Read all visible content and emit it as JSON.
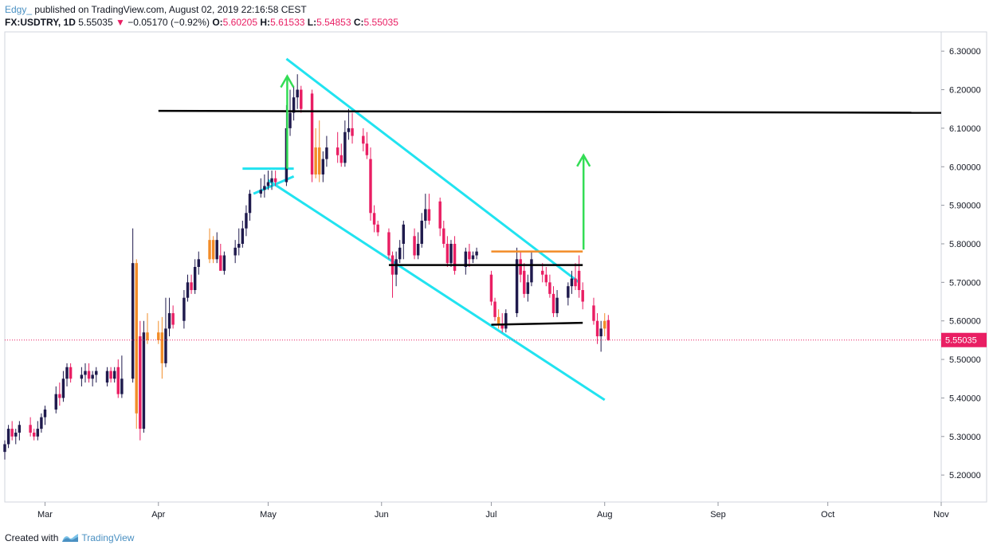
{
  "header": {
    "username": "Edgy_",
    "published_text": "published on TradingView.com, August 02, 2019 22:16:58 CEST",
    "symbol": "FX:USDTRY, 1D",
    "last": "5.55035",
    "change": "−0.05170 (−0.92%)",
    "o_label": "O:",
    "o_value": "5.60205",
    "h_label": "H:",
    "h_value": "5.61533",
    "l_label": "L:",
    "l_value": "5.54853",
    "c_label": "C:",
    "c_value": "5.55035"
  },
  "footer": {
    "created_with": "Created with",
    "brand": "TradingView"
  },
  "colors": {
    "up": "#1f1a4d",
    "down": "#e91e63",
    "highlight": "#f28c28",
    "channel": "#21e3f0",
    "arrow": "#33dd55",
    "level": "#000000",
    "price_tag": "#e91e63"
  },
  "chart_data": {
    "type": "candlestick",
    "symbol": "FX:USDTRY",
    "interval": "1D",
    "y_ticks": [
      5.2,
      5.3,
      5.4,
      5.5,
      5.6,
      5.7,
      5.8,
      5.9,
      6.0,
      6.1,
      6.2,
      6.3
    ],
    "y_tick_labels": [
      "5.20000",
      "5.30000",
      "5.40000",
      "5.50000",
      "5.60000",
      "5.70000",
      "5.80000",
      "5.90000",
      "6.00000",
      "6.10000",
      "6.20000",
      "6.30000"
    ],
    "ylim": [
      5.13,
      6.35
    ],
    "x_ticks": [
      {
        "label": "Mar",
        "date": "2019-03-01"
      },
      {
        "label": "Apr",
        "date": "2019-04-01"
      },
      {
        "label": "May",
        "date": "2019-05-01"
      },
      {
        "label": "Jun",
        "date": "2019-06-01"
      },
      {
        "label": "Jul",
        "date": "2019-07-01"
      },
      {
        "label": "Aug",
        "date": "2019-08-01"
      },
      {
        "label": "Sep",
        "date": "2019-09-01"
      },
      {
        "label": "Oct",
        "date": "2019-10-01"
      },
      {
        "label": "Nov",
        "date": "2019-11-01"
      }
    ],
    "xlim": [
      "2019-02-18",
      "2019-11-01"
    ],
    "last_price": 5.55035,
    "last_price_label": "5.55035",
    "candles": [
      {
        "d": "2019-02-18",
        "o": 5.26,
        "h": 5.29,
        "l": 5.24,
        "c": 5.28
      },
      {
        "d": "2019-02-19",
        "o": 5.28,
        "h": 5.33,
        "l": 5.27,
        "c": 5.32
      },
      {
        "d": "2019-02-20",
        "o": 5.32,
        "h": 5.34,
        "l": 5.29,
        "c": 5.3
      },
      {
        "d": "2019-02-21",
        "o": 5.3,
        "h": 5.32,
        "l": 5.28,
        "c": 5.31
      },
      {
        "d": "2019-02-22",
        "o": 5.31,
        "h": 5.34,
        "l": 5.29,
        "c": 5.33
      },
      {
        "d": "2019-02-25",
        "o": 5.33,
        "h": 5.35,
        "l": 5.3,
        "c": 5.31
      },
      {
        "d": "2019-02-26",
        "o": 5.31,
        "h": 5.32,
        "l": 5.29,
        "c": 5.3
      },
      {
        "d": "2019-02-27",
        "o": 5.3,
        "h": 5.34,
        "l": 5.29,
        "c": 5.32
      },
      {
        "d": "2019-02-28",
        "o": 5.32,
        "h": 5.36,
        "l": 5.31,
        "c": 5.35
      },
      {
        "d": "2019-03-01",
        "o": 5.35,
        "h": 5.38,
        "l": 5.33,
        "c": 5.37
      },
      {
        "d": "2019-03-04",
        "o": 5.37,
        "h": 5.43,
        "l": 5.36,
        "c": 5.41
      },
      {
        "d": "2019-03-05",
        "o": 5.41,
        "h": 5.44,
        "l": 5.38,
        "c": 5.4
      },
      {
        "d": "2019-03-06",
        "o": 5.4,
        "h": 5.47,
        "l": 5.39,
        "c": 5.45
      },
      {
        "d": "2019-03-07",
        "o": 5.45,
        "h": 5.49,
        "l": 5.43,
        "c": 5.48
      },
      {
        "d": "2019-03-08",
        "o": 5.48,
        "h": 5.49,
        "l": 5.44,
        "c": 5.45
      },
      {
        "d": "2019-03-11",
        "o": 5.45,
        "h": 5.48,
        "l": 5.43,
        "c": 5.46
      },
      {
        "d": "2019-03-12",
        "o": 5.46,
        "h": 5.49,
        "l": 5.44,
        "c": 5.47
      },
      {
        "d": "2019-03-13",
        "o": 5.47,
        "h": 5.49,
        "l": 5.44,
        "c": 5.45
      },
      {
        "d": "2019-03-14",
        "o": 5.45,
        "h": 5.47,
        "l": 5.43,
        "c": 5.46
      },
      {
        "d": "2019-03-15",
        "o": 5.46,
        "h": 5.48,
        "l": 5.44,
        "c": 5.47
      },
      {
        "d": "2019-03-18",
        "o": 5.44,
        "h": 5.48,
        "l": 5.43,
        "c": 5.47
      },
      {
        "d": "2019-03-19",
        "o": 5.47,
        "h": 5.48,
        "l": 5.44,
        "c": 5.45
      },
      {
        "d": "2019-03-20",
        "o": 5.45,
        "h": 5.48,
        "l": 5.44,
        "c": 5.47
      },
      {
        "d": "2019-03-21",
        "o": 5.48,
        "h": 5.5,
        "l": 5.4,
        "c": 5.41
      },
      {
        "d": "2019-03-22",
        "o": 5.41,
        "h": 5.51,
        "l": 5.4,
        "c": 5.45
      },
      {
        "d": "2019-03-25",
        "o": 5.45,
        "h": 5.84,
        "l": 5.44,
        "c": 5.75
      },
      {
        "d": "2019-03-26",
        "o": 5.75,
        "h": 5.76,
        "l": 5.32,
        "c": 5.36
      },
      {
        "d": "2019-03-27",
        "o": 5.56,
        "h": 5.6,
        "l": 5.29,
        "c": 5.32
      },
      {
        "d": "2019-03-28",
        "o": 5.32,
        "h": 5.6,
        "l": 5.31,
        "c": 5.57
      },
      {
        "d": "2019-03-29",
        "o": 5.57,
        "h": 5.62,
        "l": 5.54,
        "c": 5.55
      },
      {
        "d": "2019-04-01",
        "o": 5.55,
        "h": 5.6,
        "l": 5.54,
        "c": 5.57
      },
      {
        "d": "2019-04-02",
        "o": 5.57,
        "h": 5.61,
        "l": 5.45,
        "c": 5.49
      },
      {
        "d": "2019-04-03",
        "o": 5.49,
        "h": 5.66,
        "l": 5.48,
        "c": 5.58
      },
      {
        "d": "2019-04-04",
        "o": 5.58,
        "h": 5.66,
        "l": 5.56,
        "c": 5.62
      },
      {
        "d": "2019-04-05",
        "o": 5.62,
        "h": 5.64,
        "l": 5.58,
        "c": 5.59
      },
      {
        "d": "2019-04-08",
        "o": 5.6,
        "h": 5.68,
        "l": 5.58,
        "c": 5.66
      },
      {
        "d": "2019-04-09",
        "o": 5.66,
        "h": 5.72,
        "l": 5.65,
        "c": 5.7
      },
      {
        "d": "2019-04-10",
        "o": 5.7,
        "h": 5.72,
        "l": 5.67,
        "c": 5.68
      },
      {
        "d": "2019-04-11",
        "o": 5.68,
        "h": 5.76,
        "l": 5.67,
        "c": 5.74
      },
      {
        "d": "2019-04-12",
        "o": 5.74,
        "h": 5.78,
        "l": 5.72,
        "c": 5.76
      },
      {
        "d": "2019-04-15",
        "o": 5.76,
        "h": 5.84,
        "l": 5.75,
        "c": 5.81
      },
      {
        "d": "2019-04-16",
        "o": 5.81,
        "h": 5.82,
        "l": 5.75,
        "c": 5.76
      },
      {
        "d": "2019-04-17",
        "o": 5.76,
        "h": 5.83,
        "l": 5.75,
        "c": 5.81
      },
      {
        "d": "2019-04-18",
        "o": 5.77,
        "h": 5.8,
        "l": 5.74,
        "c": 5.73
      },
      {
        "d": "2019-04-19",
        "o": 5.73,
        "h": 5.78,
        "l": 5.72,
        "c": 5.77
      },
      {
        "d": "2019-04-22",
        "o": 5.77,
        "h": 5.81,
        "l": 5.75,
        "c": 5.79
      },
      {
        "d": "2019-04-23",
        "o": 5.79,
        "h": 5.84,
        "l": 5.77,
        "c": 5.8
      },
      {
        "d": "2019-04-24",
        "o": 5.8,
        "h": 5.86,
        "l": 5.79,
        "c": 5.84
      },
      {
        "d": "2019-04-25",
        "o": 5.84,
        "h": 5.9,
        "l": 5.82,
        "c": 5.88
      },
      {
        "d": "2019-04-26",
        "o": 5.88,
        "h": 5.94,
        "l": 5.86,
        "c": 5.93
      },
      {
        "d": "2019-04-29",
        "o": 5.93,
        "h": 5.97,
        "l": 5.92,
        "c": 5.94
      },
      {
        "d": "2019-04-30",
        "o": 5.94,
        "h": 5.98,
        "l": 5.92,
        "c": 5.95
      },
      {
        "d": "2019-05-01",
        "o": 5.95,
        "h": 5.99,
        "l": 5.94,
        "c": 5.96
      },
      {
        "d": "2019-05-02",
        "o": 5.96,
        "h": 5.99,
        "l": 5.94,
        "c": 5.97
      },
      {
        "d": "2019-05-03",
        "o": 5.97,
        "h": 5.99,
        "l": 5.95,
        "c": 5.96
      },
      {
        "d": "2019-05-06",
        "o": 5.96,
        "h": 6.16,
        "l": 5.95,
        "c": 6.1
      },
      {
        "d": "2019-05-07",
        "o": 6.1,
        "h": 6.2,
        "l": 6.08,
        "c": 6.14
      },
      {
        "d": "2019-05-08",
        "o": 6.14,
        "h": 6.21,
        "l": 6.12,
        "c": 6.18
      },
      {
        "d": "2019-05-09",
        "o": 6.18,
        "h": 6.24,
        "l": 6.15,
        "c": 6.2
      },
      {
        "d": "2019-05-10",
        "o": 6.2,
        "h": 6.21,
        "l": 6.14,
        "c": 6.15
      },
      {
        "d": "2019-05-13",
        "o": 6.19,
        "h": 6.2,
        "l": 5.96,
        "c": 5.98
      },
      {
        "d": "2019-05-14",
        "o": 5.98,
        "h": 6.1,
        "l": 5.97,
        "c": 6.05
      },
      {
        "d": "2019-05-15",
        "o": 6.05,
        "h": 6.12,
        "l": 5.96,
        "c": 5.98
      },
      {
        "d": "2019-05-16",
        "o": 5.98,
        "h": 6.04,
        "l": 5.96,
        "c": 6.02
      },
      {
        "d": "2019-05-17",
        "o": 6.02,
        "h": 6.08,
        "l": 6.0,
        "c": 6.05
      },
      {
        "d": "2019-05-20",
        "o": 6.05,
        "h": 6.09,
        "l": 6.01,
        "c": 6.03
      },
      {
        "d": "2019-05-21",
        "o": 6.03,
        "h": 6.06,
        "l": 6.0,
        "c": 6.01
      },
      {
        "d": "2019-05-22",
        "o": 6.01,
        "h": 6.12,
        "l": 6.0,
        "c": 6.09
      },
      {
        "d": "2019-05-23",
        "o": 6.09,
        "h": 6.15,
        "l": 6.07,
        "c": 6.1
      },
      {
        "d": "2019-05-24",
        "o": 6.1,
        "h": 6.14,
        "l": 6.06,
        "c": 6.08
      },
      {
        "d": "2019-05-27",
        "o": 6.08,
        "h": 6.1,
        "l": 6.04,
        "c": 6.06
      },
      {
        "d": "2019-05-28",
        "o": 6.06,
        "h": 6.09,
        "l": 6.02,
        "c": 6.03
      },
      {
        "d": "2019-05-29",
        "o": 6.02,
        "h": 6.05,
        "l": 5.86,
        "c": 5.88
      },
      {
        "d": "2019-05-30",
        "o": 5.88,
        "h": 5.9,
        "l": 5.83,
        "c": 5.85
      },
      {
        "d": "2019-05-31",
        "o": 5.85,
        "h": 5.86,
        "l": 5.82,
        "c": 5.83
      },
      {
        "d": "2019-06-03",
        "o": 5.83,
        "h": 5.84,
        "l": 5.76,
        "c": 5.77
      },
      {
        "d": "2019-06-04",
        "o": 5.77,
        "h": 5.78,
        "l": 5.66,
        "c": 5.72
      },
      {
        "d": "2019-06-05",
        "o": 5.72,
        "h": 5.78,
        "l": 5.69,
        "c": 5.76
      },
      {
        "d": "2019-06-06",
        "o": 5.76,
        "h": 5.81,
        "l": 5.75,
        "c": 5.79
      },
      {
        "d": "2019-06-07",
        "o": 5.8,
        "h": 5.86,
        "l": 5.76,
        "c": 5.85
      },
      {
        "d": "2019-06-10",
        "o": 5.82,
        "h": 5.84,
        "l": 5.76,
        "c": 5.77
      },
      {
        "d": "2019-06-11",
        "o": 5.77,
        "h": 5.83,
        "l": 5.76,
        "c": 5.8
      },
      {
        "d": "2019-06-12",
        "o": 5.8,
        "h": 5.88,
        "l": 5.79,
        "c": 5.86
      },
      {
        "d": "2019-06-13",
        "o": 5.86,
        "h": 5.93,
        "l": 5.84,
        "c": 5.89
      },
      {
        "d": "2019-06-14",
        "o": 5.89,
        "h": 5.93,
        "l": 5.85,
        "c": 5.86
      },
      {
        "d": "2019-06-17",
        "o": 5.91,
        "h": 5.92,
        "l": 5.82,
        "c": 5.84
      },
      {
        "d": "2019-06-18",
        "o": 5.84,
        "h": 5.86,
        "l": 5.79,
        "c": 5.8
      },
      {
        "d": "2019-06-19",
        "o": 5.8,
        "h": 5.82,
        "l": 5.74,
        "c": 5.75
      },
      {
        "d": "2019-06-20",
        "o": 5.75,
        "h": 5.81,
        "l": 5.74,
        "c": 5.8
      },
      {
        "d": "2019-06-21",
        "o": 5.8,
        "h": 5.82,
        "l": 5.72,
        "c": 5.73
      },
      {
        "d": "2019-06-24",
        "o": 5.74,
        "h": 5.79,
        "l": 5.72,
        "c": 5.78
      },
      {
        "d": "2019-06-25",
        "o": 5.78,
        "h": 5.8,
        "l": 5.74,
        "c": 5.76
      },
      {
        "d": "2019-06-26",
        "o": 5.76,
        "h": 5.78,
        "l": 5.75,
        "c": 5.77
      },
      {
        "d": "2019-06-27",
        "o": 5.77,
        "h": 5.79,
        "l": 5.76,
        "c": 5.78
      },
      {
        "d": "2019-07-01",
        "o": 5.72,
        "h": 5.73,
        "l": 5.64,
        "c": 5.65
      },
      {
        "d": "2019-07-02",
        "o": 5.65,
        "h": 5.66,
        "l": 5.6,
        "c": 5.61
      },
      {
        "d": "2019-07-03",
        "o": 5.61,
        "h": 5.63,
        "l": 5.58,
        "c": 5.59
      },
      {
        "d": "2019-07-04",
        "o": 5.59,
        "h": 5.62,
        "l": 5.57,
        "c": 5.58
      },
      {
        "d": "2019-07-05",
        "o": 5.58,
        "h": 5.63,
        "l": 5.57,
        "c": 5.62
      },
      {
        "d": "2019-07-08",
        "o": 5.62,
        "h": 5.79,
        "l": 5.61,
        "c": 5.76
      },
      {
        "d": "2019-07-09",
        "o": 5.76,
        "h": 5.78,
        "l": 5.7,
        "c": 5.72
      },
      {
        "d": "2019-07-10",
        "o": 5.73,
        "h": 5.75,
        "l": 5.66,
        "c": 5.67
      },
      {
        "d": "2019-07-11",
        "o": 5.67,
        "h": 5.72,
        "l": 5.65,
        "c": 5.7
      },
      {
        "d": "2019-07-12",
        "o": 5.7,
        "h": 5.78,
        "l": 5.69,
        "c": 5.76
      },
      {
        "d": "2019-07-15",
        "o": 5.73,
        "h": 5.75,
        "l": 5.7,
        "c": 5.72
      },
      {
        "d": "2019-07-16",
        "o": 5.72,
        "h": 5.74,
        "l": 5.69,
        "c": 5.7
      },
      {
        "d": "2019-07-17",
        "o": 5.7,
        "h": 5.72,
        "l": 5.66,
        "c": 5.67
      },
      {
        "d": "2019-07-18",
        "o": 5.67,
        "h": 5.69,
        "l": 5.61,
        "c": 5.62
      },
      {
        "d": "2019-07-19",
        "o": 5.62,
        "h": 5.68,
        "l": 5.61,
        "c": 5.66
      },
      {
        "d": "2019-07-22",
        "o": 5.66,
        "h": 5.7,
        "l": 5.64,
        "c": 5.69
      },
      {
        "d": "2019-07-23",
        "o": 5.69,
        "h": 5.73,
        "l": 5.67,
        "c": 5.71
      },
      {
        "d": "2019-07-24",
        "o": 5.71,
        "h": 5.75,
        "l": 5.68,
        "c": 5.69
      },
      {
        "d": "2019-07-25",
        "o": 5.73,
        "h": 5.77,
        "l": 5.66,
        "c": 5.68
      },
      {
        "d": "2019-07-26",
        "o": 5.68,
        "h": 5.7,
        "l": 5.63,
        "c": 5.65
      },
      {
        "d": "2019-07-29",
        "o": 5.64,
        "h": 5.66,
        "l": 5.59,
        "c": 5.6
      },
      {
        "d": "2019-07-30",
        "o": 5.6,
        "h": 5.62,
        "l": 5.54,
        "c": 5.56
      },
      {
        "d": "2019-07-31",
        "o": 5.56,
        "h": 5.6,
        "l": 5.52,
        "c": 5.58
      },
      {
        "d": "2019-08-01",
        "o": 5.58,
        "h": 5.62,
        "l": 5.56,
        "c": 5.6
      },
      {
        "d": "2019-08-02",
        "o": 5.60205,
        "h": 5.61533,
        "l": 5.54853,
        "c": 5.55035
      }
    ],
    "highlighted_candles": [
      "2019-03-26",
      "2019-03-29",
      "2019-04-01",
      "2019-04-02",
      "2019-04-15",
      "2019-04-16",
      "2019-05-14",
      "2019-05-15",
      "2019-07-03",
      "2019-08-01"
    ],
    "drawings": {
      "horizontal_levels": [
        {
          "name": "resistance",
          "d1": "2019-04-01",
          "p1": 6.145,
          "d2": "2019-11-01",
          "p2": 6.14,
          "color": "level"
        },
        {
          "name": "range-top",
          "d1": "2019-06-03",
          "p1": 5.745,
          "d2": "2019-07-26",
          "p2": 5.745,
          "color": "level"
        },
        {
          "name": "range-bottom",
          "d1": "2019-07-01",
          "p1": 5.59,
          "d2": "2019-07-26",
          "p2": 5.595,
          "color": "level"
        },
        {
          "name": "breakout-level",
          "d1": "2019-07-01",
          "p1": 5.78,
          "d2": "2019-07-26",
          "p2": 5.78,
          "color": "highlight"
        }
      ],
      "channel_lines": [
        {
          "name": "channel-upper",
          "d1": "2019-05-06",
          "p1": 6.28,
          "d2": "2019-07-25",
          "p2": 5.7
        },
        {
          "name": "channel-lower",
          "d1": "2019-05-01",
          "p1": 5.965,
          "d2": "2019-08-01",
          "p2": 5.395
        },
        {
          "name": "pennant-top",
          "d1": "2019-04-24",
          "p1": 5.995,
          "d2": "2019-05-08",
          "p2": 5.995
        },
        {
          "name": "pennant-diag",
          "d1": "2019-04-27",
          "p1": 5.93,
          "d2": "2019-05-08",
          "p2": 5.975
        }
      ],
      "target_arrows": [
        {
          "name": "target-arrow-may",
          "d": "2019-05-06",
          "from": 5.995,
          "to": 6.235
        },
        {
          "name": "target-arrow-jul",
          "d": "2019-07-26",
          "from": 5.785,
          "to": 6.03
        }
      ]
    }
  }
}
